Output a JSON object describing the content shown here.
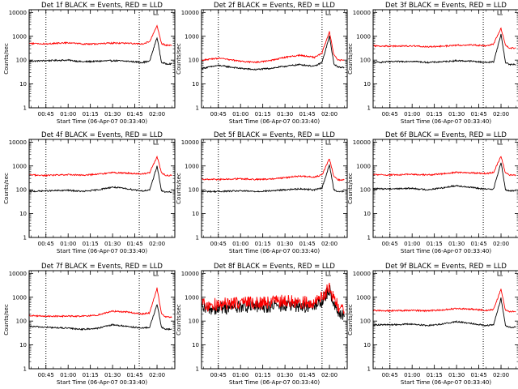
{
  "figure": {
    "ylabel": "Counts/sec",
    "xlabel": "Start Time (06-Apr-07 00:33:40)",
    "x_ticks": [
      "00:45",
      "01:00",
      "01:15",
      "01:30",
      "01:45",
      "02:00"
    ],
    "y_ticks": [
      "1",
      "10",
      "100",
      "1000",
      "10000"
    ],
    "colors": {
      "events": "#000000",
      "lld": "#ff0000",
      "axes": "#000000"
    }
  },
  "chart_data": [
    {
      "type": "line",
      "title": "Det 1f BLACK = Events, RED = LLD",
      "xlabel": "Start Time (06-Apr-07 00:33:40)",
      "ylabel": "Counts/sec",
      "ylog": true,
      "ylim": [
        1,
        13000
      ],
      "xlim": [
        "00:33:40",
        "02:12:00"
      ],
      "vlines": [
        "00:45",
        "01:48:00"
      ],
      "series": [
        {
          "name": "Events",
          "color": "#000000",
          "x": [
            "00:34",
            "00:45",
            "01:00",
            "01:10",
            "01:20",
            "01:30",
            "01:40",
            "01:50",
            "01:55",
            "02:00",
            "02:03",
            "02:06",
            "02:10"
          ],
          "values": [
            90,
            95,
            100,
            85,
            90,
            95,
            90,
            80,
            90,
            900,
            80,
            70,
            70
          ]
        },
        {
          "name": "LLD",
          "color": "#ff0000",
          "x": [
            "00:34",
            "00:45",
            "01:00",
            "01:10",
            "01:20",
            "01:30",
            "01:40",
            "01:50",
            "01:55",
            "02:00",
            "02:03",
            "02:06",
            "02:10"
          ],
          "values": [
            500,
            480,
            540,
            470,
            480,
            520,
            510,
            480,
            600,
            2700,
            500,
            420,
            420
          ]
        }
      ]
    },
    {
      "type": "line",
      "title": "Det 2f BLACK = Events, RED = LLD",
      "xlabel": "Start Time (06-Apr-07 00:33:40)",
      "ylabel": "Counts/sec",
      "ylog": true,
      "ylim": [
        1,
        13000
      ],
      "xlim": [
        "00:33:40",
        "02:12:00"
      ],
      "vlines": [
        "00:45",
        "01:55:00"
      ],
      "series": [
        {
          "name": "Events",
          "color": "#000000",
          "x": [
            "00:34",
            "00:45",
            "01:00",
            "01:10",
            "01:20",
            "01:30",
            "01:40",
            "01:50",
            "01:55",
            "02:00",
            "02:03",
            "02:06",
            "02:10"
          ],
          "values": [
            45,
            60,
            45,
            40,
            45,
            55,
            65,
            55,
            80,
            1000,
            70,
            50,
            50
          ]
        },
        {
          "name": "LLD",
          "color": "#ff0000",
          "x": [
            "00:34",
            "00:45",
            "01:00",
            "01:10",
            "01:20",
            "01:30",
            "01:40",
            "01:50",
            "01:55",
            "02:00",
            "02:03",
            "02:06",
            "02:10"
          ],
          "values": [
            100,
            120,
            90,
            80,
            95,
            130,
            160,
            130,
            200,
            1600,
            160,
            100,
            100
          ]
        }
      ]
    },
    {
      "type": "line",
      "title": "Det 3f BLACK = Events, RED = LLD",
      "xlabel": "Start Time (06-Apr-07 00:33:40)",
      "ylabel": "Counts/sec",
      "ylog": true,
      "ylim": [
        1,
        13000
      ],
      "xlim": [
        "00:33:40",
        "02:12:00"
      ],
      "vlines": [
        "00:45",
        "01:48:00"
      ],
      "series": [
        {
          "name": "Events",
          "color": "#000000",
          "x": [
            "00:34",
            "00:45",
            "01:00",
            "01:10",
            "01:20",
            "01:30",
            "01:40",
            "01:50",
            "01:55",
            "02:00",
            "02:03",
            "02:06",
            "02:10"
          ],
          "values": [
            80,
            85,
            90,
            80,
            85,
            95,
            90,
            80,
            85,
            1200,
            80,
            65,
            65
          ]
        },
        {
          "name": "LLD",
          "color": "#ff0000",
          "x": [
            "00:34",
            "00:45",
            "01:00",
            "01:10",
            "01:20",
            "01:30",
            "01:40",
            "01:50",
            "01:55",
            "02:00",
            "02:03",
            "02:06",
            "02:10"
          ],
          "values": [
            400,
            380,
            400,
            360,
            380,
            420,
            430,
            400,
            480,
            2200,
            400,
            320,
            320
          ]
        }
      ]
    },
    {
      "type": "line",
      "title": "Det 4f BLACK = Events, RED = LLD",
      "xlabel": "Start Time (06-Apr-07 00:33:40)",
      "ylabel": "Counts/sec",
      "ylog": true,
      "ylim": [
        1,
        13000
      ],
      "xlim": [
        "00:33:40",
        "02:12:00"
      ],
      "vlines": [
        "00:45",
        "01:48:00"
      ],
      "series": [
        {
          "name": "Events",
          "color": "#000000",
          "x": [
            "00:34",
            "00:45",
            "01:00",
            "01:10",
            "01:20",
            "01:30",
            "01:40",
            "01:50",
            "01:55",
            "02:00",
            "02:03",
            "02:06",
            "02:10"
          ],
          "values": [
            85,
            90,
            95,
            85,
            100,
            130,
            110,
            90,
            95,
            1000,
            90,
            80,
            80
          ]
        },
        {
          "name": "LLD",
          "color": "#ff0000",
          "x": [
            "00:34",
            "00:45",
            "01:00",
            "01:10",
            "01:20",
            "01:30",
            "01:40",
            "01:50",
            "01:55",
            "02:00",
            "02:03",
            "02:06",
            "02:10"
          ],
          "values": [
            420,
            400,
            430,
            410,
            450,
            520,
            500,
            460,
            520,
            2500,
            500,
            400,
            400
          ]
        }
      ]
    },
    {
      "type": "line",
      "title": "Det 5f BLACK = Events, RED = LLD",
      "xlabel": "Start Time (06-Apr-07 00:33:40)",
      "ylabel": "Counts/sec",
      "ylog": true,
      "ylim": [
        1,
        13000
      ],
      "xlim": [
        "00:33:40",
        "02:12:00"
      ],
      "vlines": [
        "00:45",
        "01:55:00"
      ],
      "series": [
        {
          "name": "Events",
          "color": "#000000",
          "x": [
            "00:34",
            "00:45",
            "01:00",
            "01:10",
            "01:20",
            "01:30",
            "01:40",
            "01:50",
            "01:55",
            "02:00",
            "02:03",
            "02:06",
            "02:10"
          ],
          "values": [
            85,
            85,
            90,
            85,
            90,
            100,
            110,
            100,
            120,
            1100,
            100,
            85,
            85
          ]
        },
        {
          "name": "LLD",
          "color": "#ff0000",
          "x": [
            "00:34",
            "00:45",
            "01:00",
            "01:10",
            "01:20",
            "01:30",
            "01:40",
            "01:50",
            "01:55",
            "02:00",
            "02:03",
            "02:06",
            "02:10"
          ],
          "values": [
            280,
            270,
            290,
            270,
            280,
            320,
            380,
            340,
            420,
            2000,
            350,
            260,
            260
          ]
        }
      ]
    },
    {
      "type": "line",
      "title": "Det 6f BLACK = Events, RED = LLD",
      "xlabel": "Start Time (06-Apr-07 00:33:40)",
      "ylabel": "Counts/sec",
      "ylog": true,
      "ylim": [
        1,
        13000
      ],
      "xlim": [
        "00:33:40",
        "02:12:00"
      ],
      "vlines": [
        "00:45",
        "01:48:00"
      ],
      "series": [
        {
          "name": "Events",
          "color": "#000000",
          "x": [
            "00:34",
            "00:45",
            "01:00",
            "01:10",
            "01:20",
            "01:30",
            "01:40",
            "01:50",
            "01:55",
            "02:00",
            "02:03",
            "02:06",
            "02:10"
          ],
          "values": [
            110,
            110,
            115,
            100,
            120,
            150,
            125,
            105,
            110,
            1400,
            100,
            90,
            90
          ]
        },
        {
          "name": "LLD",
          "color": "#ff0000",
          "x": [
            "00:34",
            "00:45",
            "01:00",
            "01:10",
            "01:20",
            "01:30",
            "01:40",
            "01:50",
            "01:55",
            "02:00",
            "02:03",
            "02:06",
            "02:10"
          ],
          "values": [
            430,
            420,
            440,
            420,
            460,
            540,
            520,
            480,
            540,
            2600,
            500,
            420,
            420
          ]
        }
      ]
    },
    {
      "type": "line",
      "title": "Det 7f BLACK = Events, RED = LLD",
      "xlabel": "Start Time (06-Apr-07 00:33:40)",
      "ylabel": "Counts/sec",
      "ylog": true,
      "ylim": [
        1,
        13000
      ],
      "xlim": [
        "00:33:40",
        "02:12:00"
      ],
      "vlines": [
        "00:45",
        "01:48:00"
      ],
      "series": [
        {
          "name": "Events",
          "color": "#000000",
          "x": [
            "00:34",
            "00:45",
            "01:00",
            "01:10",
            "01:20",
            "01:30",
            "01:40",
            "01:50",
            "01:55",
            "02:00",
            "02:03",
            "02:06",
            "02:10"
          ],
          "values": [
            60,
            55,
            50,
            45,
            50,
            70,
            60,
            50,
            55,
            500,
            55,
            45,
            45
          ]
        },
        {
          "name": "LLD",
          "color": "#ff0000",
          "x": [
            "00:34",
            "00:45",
            "01:00",
            "01:10",
            "01:20",
            "01:30",
            "01:40",
            "01:50",
            "01:55",
            "02:00",
            "02:03",
            "02:06",
            "02:10"
          ],
          "values": [
            170,
            160,
            160,
            160,
            180,
            260,
            240,
            200,
            220,
            2400,
            200,
            150,
            150
          ]
        }
      ]
    },
    {
      "type": "line",
      "title": "Det 8f BLACK = Events, RED = LLD",
      "xlabel": "Start Time (06-Apr-07 00:33:40)",
      "ylabel": "Counts/sec",
      "ylog": true,
      "ylim": [
        1,
        13000
      ],
      "xlim": [
        "00:33:40",
        "02:12:00"
      ],
      "vlines": [
        "00:45",
        "01:55:00"
      ],
      "series": [
        {
          "name": "Events",
          "color": "#000000",
          "x": [
            "00:34",
            "00:45",
            "01:00",
            "01:10",
            "01:20",
            "01:30",
            "01:40",
            "01:50",
            "01:55",
            "02:00",
            "02:03",
            "02:06",
            "02:10"
          ],
          "values": [
            300,
            350,
            400,
            380,
            420,
            450,
            420,
            400,
            700,
            2000,
            600,
            250,
            150
          ]
        },
        {
          "name": "LLD",
          "color": "#ff0000",
          "x": [
            "00:34",
            "00:45",
            "01:00",
            "01:10",
            "01:20",
            "01:30",
            "01:40",
            "01:50",
            "01:55",
            "02:00",
            "02:03",
            "02:06",
            "02:10"
          ],
          "values": [
            450,
            500,
            600,
            550,
            600,
            700,
            620,
            580,
            1000,
            2700,
            900,
            400,
            250
          ]
        }
      ]
    },
    {
      "type": "line",
      "title": "Det 9f BLACK = Events, RED = LLD",
      "xlabel": "Start Time (06-Apr-07 00:33:40)",
      "ylabel": "Counts/sec",
      "ylog": true,
      "ylim": [
        1,
        13000
      ],
      "xlim": [
        "00:33:40",
        "02:12:00"
      ],
      "vlines": [
        "00:45",
        "01:48:00"
      ],
      "series": [
        {
          "name": "Events",
          "color": "#000000",
          "x": [
            "00:34",
            "00:45",
            "01:00",
            "01:10",
            "01:20",
            "01:30",
            "01:40",
            "01:50",
            "01:55",
            "02:00",
            "02:03",
            "02:06",
            "02:10"
          ],
          "values": [
            70,
            70,
            75,
            65,
            75,
            95,
            80,
            65,
            70,
            900,
            65,
            55,
            55
          ]
        },
        {
          "name": "LLD",
          "color": "#ff0000",
          "x": [
            "00:34",
            "00:45",
            "01:00",
            "01:10",
            "01:20",
            "01:30",
            "01:40",
            "01:50",
            "01:55",
            "02:00",
            "02:03",
            "02:06",
            "02:10"
          ],
          "values": [
            280,
            270,
            280,
            270,
            290,
            340,
            320,
            280,
            310,
            2200,
            280,
            250,
            250
          ]
        }
      ]
    }
  ]
}
